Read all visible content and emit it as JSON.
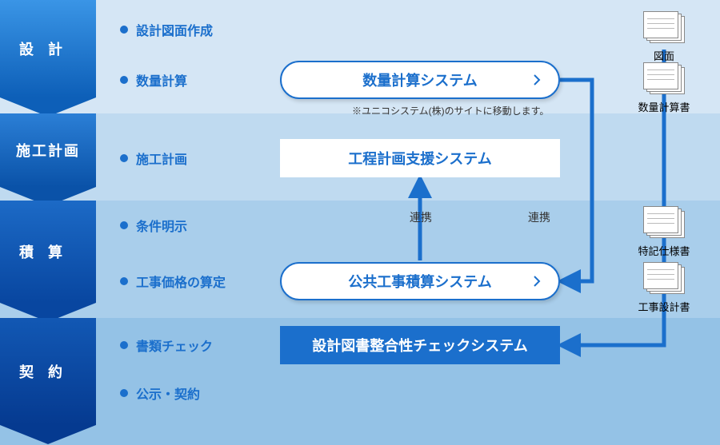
{
  "colors": {
    "arrow": "#1b6fcc",
    "stage1_top": "#3a95e6",
    "stage1_bot": "#0d5fb8",
    "stage2_top": "#2b7fd6",
    "stage2_bot": "#0a52a8",
    "stage3_top": "#1c6ac6",
    "stage3_bot": "#0846a0",
    "stage4_top": "#1258b4",
    "stage4_bot": "#053a90",
    "band1": "#d5e6f5",
    "band2": "#bfdaf0",
    "band3": "#a9ceeb",
    "band4": "#94c2e6",
    "bullet_text": "#1b6fcc",
    "box_text": "#1b6fcc"
  },
  "stages": [
    {
      "label": "設計",
      "letter_spacing": "18px"
    },
    {
      "label": "施工計画",
      "letter_spacing": "2px"
    },
    {
      "label": "積算",
      "letter_spacing": "18px"
    },
    {
      "label": "契約",
      "letter_spacing": "18px"
    }
  ],
  "bullets": [
    {
      "text": "設計図面作成"
    },
    {
      "text": "数量計算"
    },
    {
      "text": "施工計画"
    },
    {
      "text": "条件明示"
    },
    {
      "text": "工事価格の算定"
    },
    {
      "text": "書類チェック"
    },
    {
      "text": "公示・契約"
    }
  ],
  "boxes": {
    "qty": {
      "label": "数量計算システム",
      "note": "※ユニコシステム(株)のサイトに移動します。"
    },
    "sched": {
      "label": "工程計画支援システム"
    },
    "est": {
      "label": "公共工事積算システム"
    },
    "check": {
      "label": "設計図書整合性チェックシステム"
    }
  },
  "link_label": "連携",
  "docs": {
    "drawing": "図面",
    "qtybook": "数量計算書",
    "spec": "特記仕様書",
    "design": "工事設計書"
  }
}
